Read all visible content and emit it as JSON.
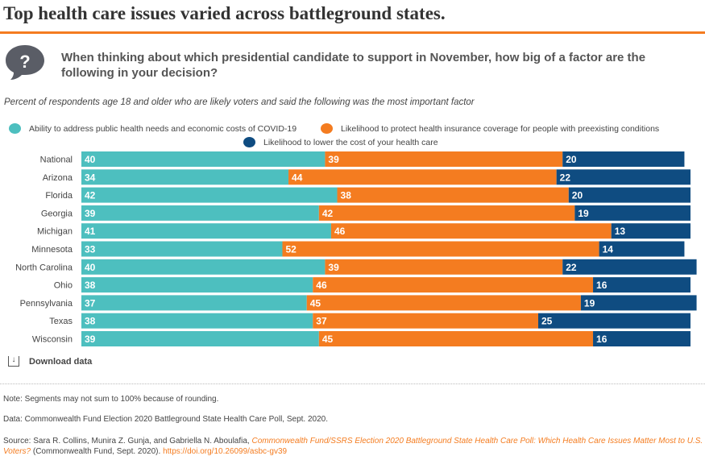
{
  "title": "Top health care issues varied across battleground states.",
  "question": "When thinking about which presidential candidate to support in November, how big of a factor are the following in your decision?",
  "icon": "question-bubble-icon",
  "download_label": "Download data",
  "notes": {
    "note": "Note: Segments may not sum to 100% because of rounding.",
    "data": "Data: Commonwealth Fund Election 2020 Battleground State Health Care Poll, Sept. 2020.",
    "source_prefix": "Source: Sara R. Collins, Munira Z. Gunja, and Gabriella N. Aboulafia, ",
    "source_title": "Commonwealth Fund/SSRS Election 2020 Battleground State Health Care Poll: Which Health Care Issues Matter Most to U.S. Voters?",
    "source_suffix": " (Commonwealth Fund, Sept. 2020). ",
    "source_link": "https://doi.org/10.26099/asbc-gv39"
  },
  "chart_data": {
    "type": "bar",
    "stacked": true,
    "orientation": "horizontal",
    "subtitle": "Percent of respondents age 18 and older who are likely voters and said the following was the most important factor",
    "categories": [
      "National",
      "Arizona",
      "Florida",
      "Georgia",
      "Michigan",
      "Minnesota",
      "North Carolina",
      "Ohio",
      "Pennsylvania",
      "Texas",
      "Wisconsin"
    ],
    "series": [
      {
        "name": "Ability to address public health needs and economic costs of COVID-19",
        "color": "#4dbfbf",
        "values": [
          40,
          34,
          42,
          39,
          41,
          33,
          40,
          38,
          37,
          38,
          39
        ]
      },
      {
        "name": "Likelihood to protect health insurance coverage for people with preexisting conditions",
        "color": "#f47c20",
        "values": [
          39,
          44,
          38,
          42,
          46,
          52,
          39,
          46,
          45,
          37,
          45
        ]
      },
      {
        "name": "Likelihood to lower the cost of your health care",
        "color": "#0f4c81",
        "values": [
          20,
          22,
          20,
          19,
          13,
          14,
          22,
          16,
          19,
          25,
          16
        ]
      }
    ],
    "xlim": [
      0,
      100
    ],
    "legend": "top",
    "grid": false
  }
}
